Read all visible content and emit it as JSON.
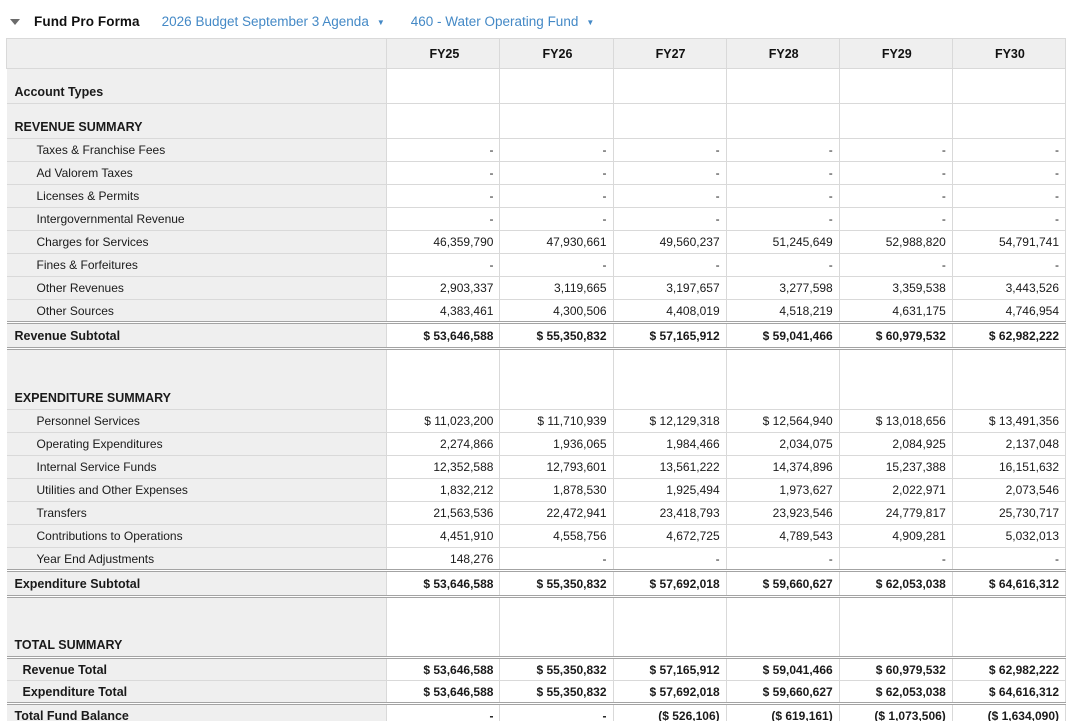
{
  "page": {
    "title": "Fund Pro Forma",
    "dropdowns": [
      {
        "label": "2026 Budget September 3 Agenda"
      },
      {
        "label": "460 - Water Operating Fund"
      }
    ]
  },
  "colors": {
    "link_blue": "#4489c6",
    "label_column_bg": "#efefef",
    "border": "#d9d9d9",
    "double_rule": "#a3a3a3"
  },
  "table": {
    "columns": [
      "FY25",
      "FY26",
      "FY27",
      "FY28",
      "FY29",
      "FY30"
    ],
    "rows": [
      {
        "type": "section",
        "label": "Account Types",
        "values": [
          "",
          "",
          "",
          "",
          "",
          ""
        ]
      },
      {
        "type": "section",
        "label": "REVENUE SUMMARY",
        "values": [
          "",
          "",
          "",
          "",
          "",
          ""
        ]
      },
      {
        "type": "data",
        "label": "Taxes & Franchise Fees",
        "values": [
          "-",
          "-",
          "-",
          "-",
          "-",
          "-"
        ]
      },
      {
        "type": "data",
        "label": "Ad Valorem Taxes",
        "values": [
          "-",
          "-",
          "-",
          "-",
          "-",
          "-"
        ]
      },
      {
        "type": "data",
        "label": "Licenses & Permits",
        "values": [
          "-",
          "-",
          "-",
          "-",
          "-",
          "-"
        ]
      },
      {
        "type": "data",
        "label": "Intergovernmental Revenue",
        "values": [
          "-",
          "-",
          "-",
          "-",
          "-",
          "-"
        ]
      },
      {
        "type": "data",
        "label": "Charges for Services",
        "values": [
          "46,359,790",
          "47,930,661",
          "49,560,237",
          "51,245,649",
          "52,988,820",
          "54,791,741"
        ]
      },
      {
        "type": "data",
        "label": "Fines & Forfeitures",
        "values": [
          "-",
          "-",
          "-",
          "-",
          "-",
          "-"
        ]
      },
      {
        "type": "data",
        "label": "Other Revenues",
        "values": [
          "2,903,337",
          "3,119,665",
          "3,197,657",
          "3,277,598",
          "3,359,538",
          "3,443,526"
        ]
      },
      {
        "type": "data",
        "label": "Other Sources",
        "values": [
          "4,383,461",
          "4,300,506",
          "4,408,019",
          "4,518,219",
          "4,631,175",
          "4,746,954"
        ]
      },
      {
        "type": "subtotal",
        "label": "Revenue Subtotal",
        "values": [
          "$ 53,646,588",
          "$ 55,350,832",
          "$ 57,165,912",
          "$ 59,041,466",
          "$ 60,979,532",
          "$ 62,982,222"
        ]
      },
      {
        "type": "gap",
        "label": "",
        "values": [
          "",
          "",
          "",
          "",
          "",
          ""
        ]
      },
      {
        "type": "section",
        "label": "EXPENDITURE SUMMARY",
        "values": [
          "",
          "",
          "",
          "",
          "",
          ""
        ]
      },
      {
        "type": "data",
        "label": "Personnel Services",
        "values": [
          "$ 11,023,200",
          "$ 11,710,939",
          "$ 12,129,318",
          "$ 12,564,940",
          "$ 13,018,656",
          "$ 13,491,356"
        ]
      },
      {
        "type": "data",
        "label": "Operating Expenditures",
        "values": [
          "2,274,866",
          "1,936,065",
          "1,984,466",
          "2,034,075",
          "2,084,925",
          "2,137,048"
        ]
      },
      {
        "type": "data",
        "label": "Internal Service Funds",
        "values": [
          "12,352,588",
          "12,793,601",
          "13,561,222",
          "14,374,896",
          "15,237,388",
          "16,151,632"
        ]
      },
      {
        "type": "data",
        "label": "Utilities and Other Expenses",
        "values": [
          "1,832,212",
          "1,878,530",
          "1,925,494",
          "1,973,627",
          "2,022,971",
          "2,073,546"
        ]
      },
      {
        "type": "data",
        "label": "Transfers",
        "values": [
          "21,563,536",
          "22,472,941",
          "23,418,793",
          "23,923,546",
          "24,779,817",
          "25,730,717"
        ]
      },
      {
        "type": "data",
        "label": "Contributions to Operations",
        "values": [
          "4,451,910",
          "4,558,756",
          "4,672,725",
          "4,789,543",
          "4,909,281",
          "5,032,013"
        ]
      },
      {
        "type": "data",
        "label": "Year End Adjustments",
        "values": [
          "148,276",
          "-",
          "-",
          "-",
          "-",
          "-"
        ]
      },
      {
        "type": "subtotal",
        "label": "Expenditure Subtotal",
        "values": [
          "$ 53,646,588",
          "$ 55,350,832",
          "$ 57,692,018",
          "$ 59,660,627",
          "$ 62,053,038",
          "$ 64,616,312"
        ]
      },
      {
        "type": "gap",
        "label": "",
        "values": [
          "",
          "",
          "",
          "",
          "",
          ""
        ]
      },
      {
        "type": "section",
        "label": "TOTAL SUMMARY",
        "values": [
          "",
          "",
          "",
          "",
          "",
          ""
        ]
      },
      {
        "type": "total",
        "label": "Revenue Total",
        "values": [
          "$ 53,646,588",
          "$ 55,350,832",
          "$ 57,165,912",
          "$ 59,041,466",
          "$ 60,979,532",
          "$ 62,982,222"
        ]
      },
      {
        "type": "total",
        "label": "Expenditure Total",
        "values": [
          "$ 53,646,588",
          "$ 55,350,832",
          "$ 57,692,018",
          "$ 59,660,627",
          "$ 62,053,038",
          "$ 64,616,312"
        ]
      },
      {
        "type": "grandtotal",
        "label": "Total Fund Balance",
        "values": [
          "-",
          "-",
          "($ 526,106)",
          "($ 619,161)",
          "($ 1,073,506)",
          "($ 1,634,090)"
        ]
      }
    ]
  }
}
